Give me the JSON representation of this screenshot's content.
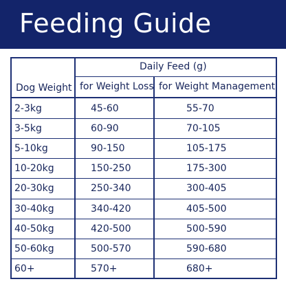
{
  "title": "Feeding Guide",
  "table": {
    "group_header": "Daily Feed (g)",
    "columns": [
      "Dog Weight",
      "for Weight Loss",
      "for Weight Management"
    ],
    "rows": [
      {
        "weight": "2-3kg",
        "loss": "45-60",
        "management": "55-70"
      },
      {
        "weight": "3-5kg",
        "loss": "60-90",
        "management": "70-105"
      },
      {
        "weight": "5-10kg",
        "loss": "90-150",
        "management": "105-175"
      },
      {
        "weight": "10-20kg",
        "loss": "150-250",
        "management": "175-300"
      },
      {
        "weight": "20-30kg",
        "loss": "250-340",
        "management": "300-405"
      },
      {
        "weight": "30-40kg",
        "loss": "340-420",
        "management": "405-500"
      },
      {
        "weight": "40-50kg",
        "loss": "420-500",
        "management": "500-590"
      },
      {
        "weight": "50-60kg",
        "loss": "500-570",
        "management": "590-680"
      },
      {
        "weight": "60+",
        "loss": "570+",
        "management": "680+"
      }
    ]
  },
  "colors": {
    "banner": "#13246a",
    "text": "#16245a",
    "rule": "#1c2f74"
  }
}
